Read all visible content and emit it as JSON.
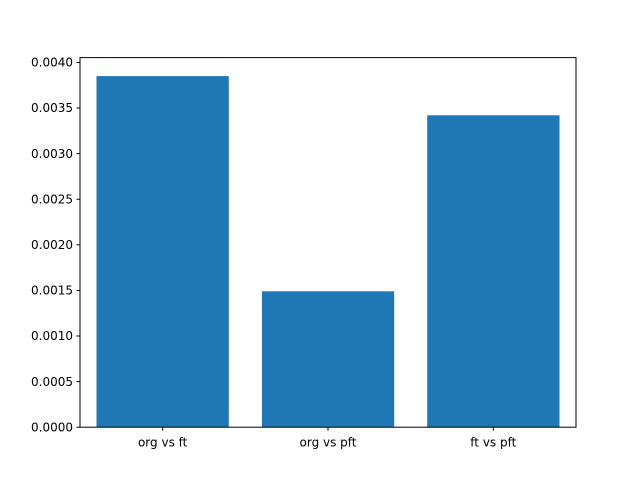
{
  "chart_data": {
    "type": "bar",
    "title": "",
    "xlabel": "",
    "ylabel": "",
    "categories": [
      "org vs ft",
      "org vs pft",
      "ft vs pft"
    ],
    "values": [
      0.00385,
      0.00149,
      0.00342
    ],
    "ylim": [
      0,
      0.004053
    ],
    "yticks": [
      0.0,
      0.0005,
      0.001,
      0.0015,
      0.002,
      0.0025,
      0.003,
      0.0035,
      0.004
    ],
    "ytick_labels": [
      "0.0000",
      "0.0005",
      "0.0010",
      "0.0015",
      "0.0020",
      "0.0025",
      "0.0030",
      "0.0035",
      "0.0040"
    ],
    "bar_color": "#1f77b4",
    "bar_width_fraction": 0.8,
    "grid": false,
    "legend": null,
    "background_color": "#ffffff",
    "spine_color": "#000000"
  }
}
